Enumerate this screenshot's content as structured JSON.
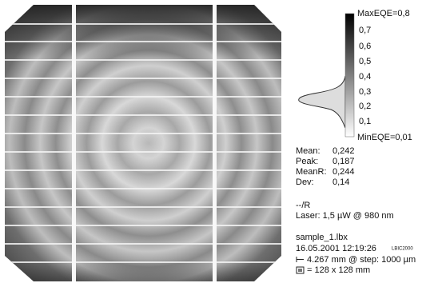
{
  "scale": {
    "max": "MaxEQE=0,8",
    "ticks": [
      "0,7",
      "0,6",
      "0,5",
      "0,4",
      "0,3",
      "0,2",
      "0,1"
    ],
    "min": "MinEQE=0,01"
  },
  "stats": [
    {
      "label": "Mean:",
      "value": "0,242"
    },
    {
      "label": "Peak:",
      "value": "0,187"
    },
    {
      "label": "MeanR:",
      "value": "0,244"
    },
    {
      "label": "Dev:",
      "value": "0,14"
    }
  ],
  "measurement": {
    "mode": "--/R",
    "laser": "Laser: 1,5 µW @ 980 nm"
  },
  "file": {
    "name": "sample_1.lbx",
    "datetime": "16.05.2001 12:19:26",
    "device": "LBIC2000",
    "step": "4.267 mm @ step: 1000 µm",
    "size": "= 128 x 128 mm"
  }
}
